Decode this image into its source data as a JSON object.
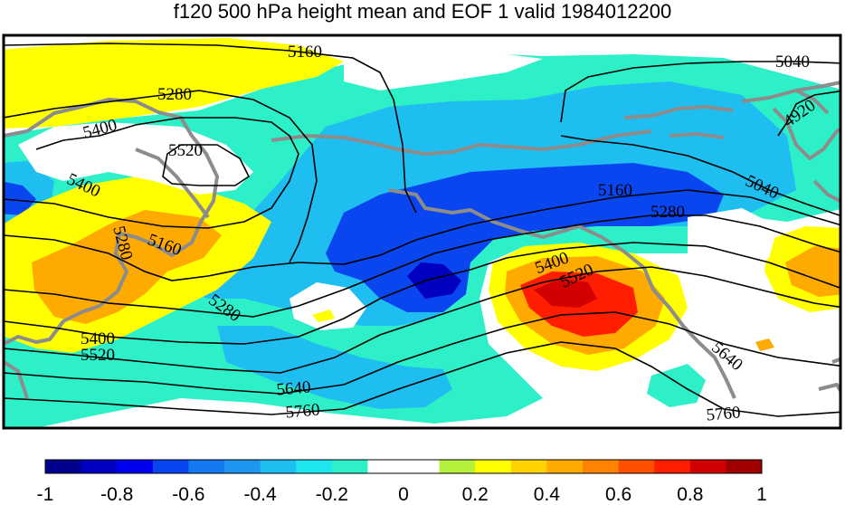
{
  "title": "f120 500 hPa height mean and EOF 1 valid 1984012200",
  "colorbar": {
    "colors": [
      "#00008c",
      "#0000be",
      "#0000f0",
      "#0a46f0",
      "#1478f0",
      "#1e96f0",
      "#1ebef0",
      "#1ee6f0",
      "#2ef0c8",
      "#ffffff",
      "#ffffff",
      "#b4f03c",
      "#ffff00",
      "#ffd200",
      "#ffaa00",
      "#ff8200",
      "#ff5000",
      "#ff1e00",
      "#d20000",
      "#a00000"
    ],
    "tick_labels": [
      "-1",
      "-0.8",
      "-0.6",
      "-0.4",
      "-0.2",
      "0",
      "0.2",
      "0.4",
      "0.6",
      "0.8",
      "1"
    ]
  },
  "contour_labels": [
    "5160",
    "5040",
    "5280",
    "4920",
    "5400",
    "5520",
    "5040",
    "5400",
    "5160",
    "5280",
    "5280",
    "5160",
    "5400",
    "5520",
    "5280",
    "5400",
    "5520",
    "5640",
    "5640",
    "5760",
    "5760"
  ]
}
